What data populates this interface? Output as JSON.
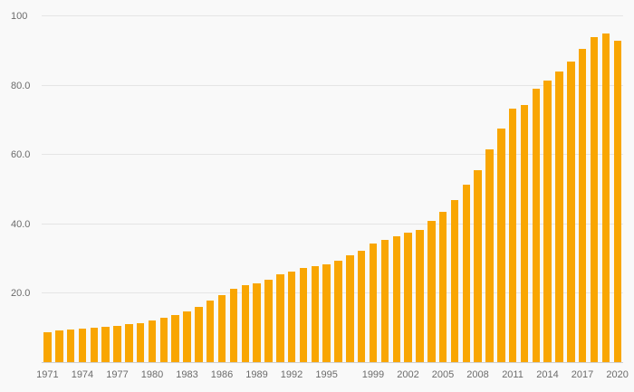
{
  "colors": {
    "bar": "#F9A602",
    "background": "#f9f9f9",
    "gridline": "#e5e5e5",
    "axis_line": "#cfcfcf",
    "tick_text": "#6b6b6b"
  },
  "chart_data": {
    "type": "bar",
    "title": "",
    "xlabel": "",
    "ylabel": "",
    "ylim": [
      0,
      100
    ],
    "grid": true,
    "legend": "none",
    "x": [
      1971,
      1972,
      1973,
      1974,
      1975,
      1976,
      1977,
      1978,
      1979,
      1980,
      1981,
      1982,
      1983,
      1984,
      1985,
      1986,
      1987,
      1988,
      1989,
      1990,
      1991,
      1992,
      1993,
      1994,
      1995,
      1996,
      1997,
      1998,
      1999,
      2000,
      2001,
      2002,
      2003,
      2004,
      2005,
      2006,
      2007,
      2008,
      2009,
      2010,
      2011,
      2012,
      2013,
      2014,
      2015,
      2016,
      2017,
      2018,
      2019,
      2020
    ],
    "values": [
      9.0,
      9.3,
      9.7,
      9.9,
      10.1,
      10.5,
      10.8,
      11.2,
      11.6,
      12.4,
      13.0,
      13.8,
      15.0,
      16.2,
      18.0,
      19.5,
      21.5,
      22.5,
      23.0,
      24.0,
      25.5,
      26.5,
      27.5,
      28.0,
      28.5,
      29.5,
      31.0,
      32.5,
      34.5,
      35.5,
      36.5,
      37.5,
      38.5,
      41.0,
      43.5,
      47.0,
      51.5,
      55.5,
      61.5,
      67.5,
      73.5,
      74.5,
      79.0,
      81.5,
      84.0,
      87.0,
      90.5,
      94.0,
      95.0,
      93.0
    ],
    "yticks": [
      {
        "value": 20,
        "label": "20.0"
      },
      {
        "value": 40,
        "label": "40.0"
      },
      {
        "value": 60,
        "label": "60.0"
      },
      {
        "value": 80,
        "label": "80.0"
      },
      {
        "value": 100,
        "label": "100"
      }
    ],
    "xticks": [
      "1971",
      "1974",
      "1977",
      "1980",
      "1983",
      "1986",
      "1989",
      "1992",
      "1995",
      "1999",
      "2002",
      "2005",
      "2008",
      "2011",
      "2014",
      "2017",
      "2020"
    ]
  }
}
